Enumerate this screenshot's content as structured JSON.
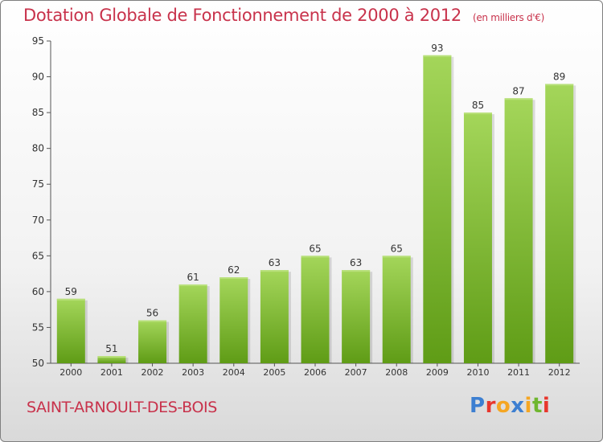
{
  "header": {
    "title": "Dotation Globale de Fonctionnement de 2000 à 2012",
    "unit": "(en milliers d'€)"
  },
  "footer": {
    "commune": "SAINT-ARNOULT-DES-BOIS",
    "logo": [
      "P",
      "r",
      "o",
      "x",
      "i",
      "t",
      "i"
    ]
  },
  "colors": {
    "title": "#c8324b",
    "bar_light": "#a4d65a",
    "bar_dark": "#5f9c16",
    "logo": [
      "#3d7fd1",
      "#e8372d",
      "#f5a623",
      "#3d7fd1",
      "#f5a623",
      "#6fb62f",
      "#e8372d"
    ]
  },
  "chart_data": {
    "type": "bar",
    "categories": [
      "2000",
      "2001",
      "2002",
      "2003",
      "2004",
      "2005",
      "2006",
      "2007",
      "2008",
      "2009",
      "2010",
      "2011",
      "2012"
    ],
    "values": [
      59,
      51,
      56,
      61,
      62,
      63,
      65,
      63,
      65,
      93,
      85,
      87,
      89
    ],
    "ylim": [
      50,
      95
    ],
    "yticks": [
      50,
      55,
      60,
      65,
      70,
      75,
      80,
      85,
      90,
      95
    ],
    "grid": false,
    "data_labels": true
  }
}
